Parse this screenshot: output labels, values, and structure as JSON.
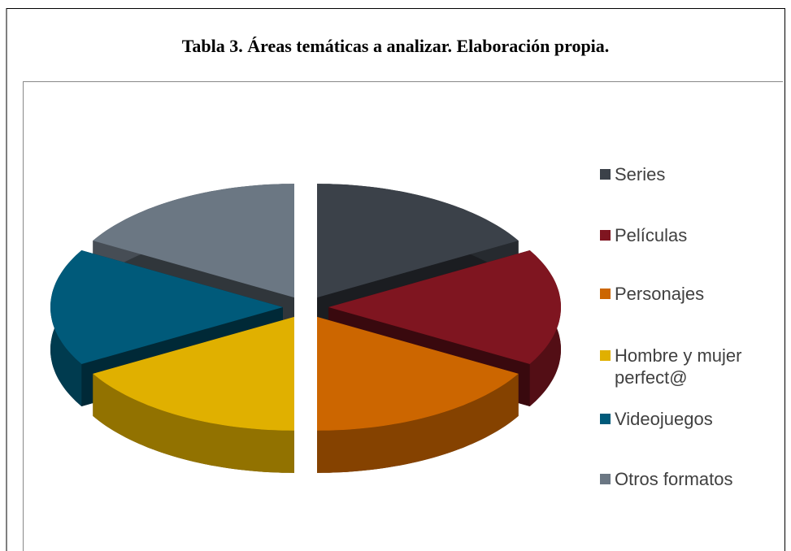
{
  "chart_data": {
    "type": "pie3d",
    "title": "Tabla 3. Áreas temáticas a analizar. Elaboración propia.",
    "categories": [
      "Series",
      "Películas",
      "Personajes",
      "Hombre y mujer perfect@",
      "Videojuegos",
      "Otros formatos"
    ],
    "values": [
      1,
      1,
      1,
      1,
      1,
      1
    ],
    "colors": [
      "#3b4149",
      "#7f1520",
      "#cc6600",
      "#e0b000",
      "#005a7a",
      "#6b7783"
    ],
    "legend": "right"
  }
}
